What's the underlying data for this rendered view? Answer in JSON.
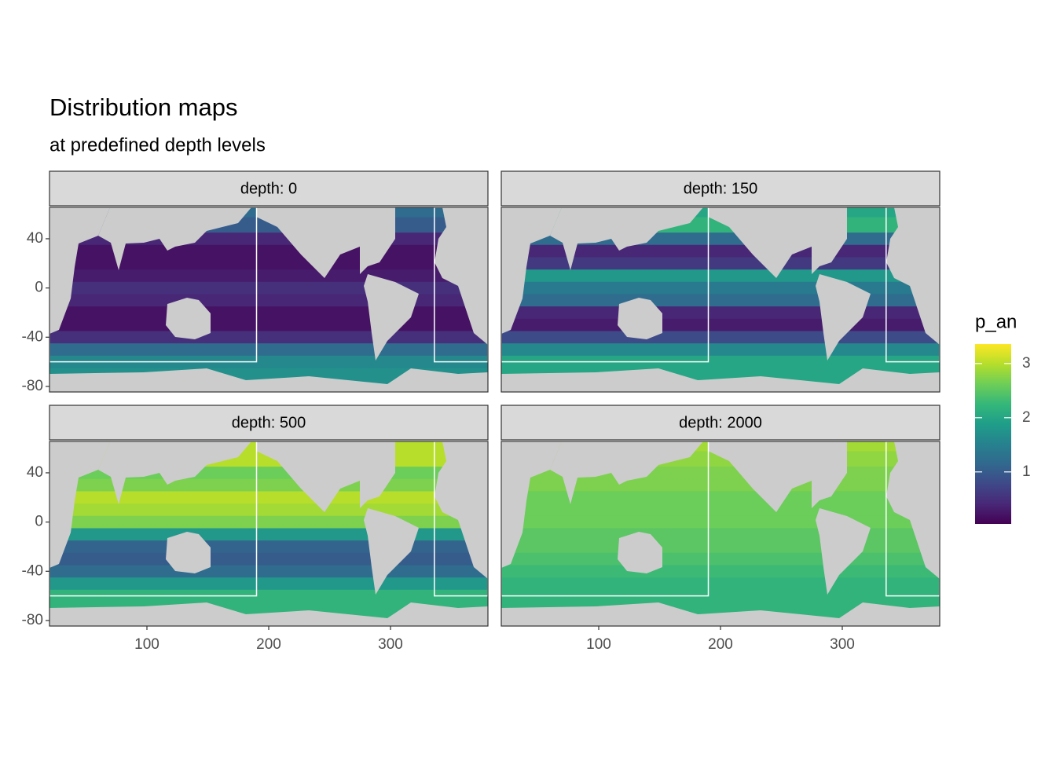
{
  "chart_data": {
    "type": "raster-facets",
    "title": "Distribution maps",
    "subtitle": "at predefined depth levels",
    "xlim": [
      20,
      380
    ],
    "ylim": [
      -84.5,
      65.5
    ],
    "xticks": [
      100,
      200,
      300
    ],
    "yticks": [
      40,
      0,
      -40,
      -80
    ],
    "lats": [
      65,
      50,
      40,
      30,
      20,
      10,
      0,
      -10,
      -20,
      -30,
      -40,
      -50,
      -60,
      -70
    ],
    "facets": [
      {
        "label": "depth: 0",
        "values": [
          1.2,
          1.0,
          0.4,
          0.2,
          0.2,
          0.3,
          0.5,
          0.4,
          0.2,
          0.2,
          0.5,
          1.2,
          1.6,
          1.7
        ]
      },
      {
        "label": "depth: 150",
        "values": [
          2.0,
          2.2,
          1.2,
          0.4,
          0.6,
          1.8,
          1.4,
          1.2,
          0.4,
          0.3,
          0.8,
          1.6,
          2.0,
          2.0
        ]
      },
      {
        "label": "depth: 500",
        "values": [
          3.0,
          3.0,
          2.6,
          2.7,
          3.0,
          2.9,
          2.7,
          1.8,
          1.1,
          1.0,
          1.2,
          1.8,
          2.2,
          2.2
        ]
      },
      {
        "label": "depth: 2000",
        "values": [
          2.9,
          2.8,
          2.7,
          2.7,
          2.6,
          2.6,
          2.6,
          2.5,
          2.5,
          2.4,
          2.3,
          2.2,
          2.2,
          2.2
        ]
      }
    ],
    "regions": [
      {
        "xlim": [
          20,
          190
        ],
        "ylim": [
          -60,
          65.5
        ]
      },
      {
        "xlim": [
          336,
          380
        ],
        "ylim": [
          -60,
          65.5
        ]
      }
    ],
    "legend": {
      "title": "p_an",
      "lim": [
        0.04,
        3.36
      ],
      "ticks": [
        1,
        2,
        3
      ]
    },
    "palette": [
      "#440154",
      "#482878",
      "#3e4989",
      "#31688e",
      "#26828e",
      "#1f9e89",
      "#35b779",
      "#6ece58",
      "#b5de2b",
      "#fde725"
    ],
    "land_color": "#cccccc"
  }
}
